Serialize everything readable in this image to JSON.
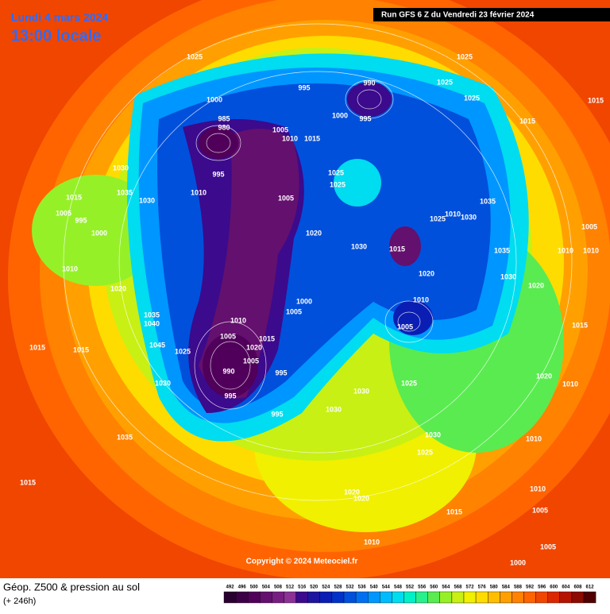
{
  "header": {
    "date": "Lundi 4 mars 2024",
    "time": "13:00 locale",
    "run": "Run GFS 6 Z du Vendredi 23 février 2024"
  },
  "footer": {
    "title": "Géop. Z500 & pression au sol",
    "lead": "(+ 246h)",
    "copyright": "Copyright © 2024 Meteociel.fr"
  },
  "scale": {
    "values": [
      492,
      496,
      500,
      504,
      508,
      512,
      516,
      520,
      524,
      528,
      532,
      536,
      540,
      544,
      548,
      552,
      556,
      560,
      564,
      568,
      572,
      576,
      580,
      584,
      588,
      592,
      596,
      600,
      604,
      608,
      612
    ],
    "colors": [
      "#2a0030",
      "#3c0046",
      "#50005a",
      "#64106e",
      "#781e82",
      "#8c3296",
      "#3c0a8c",
      "#1e14a0",
      "#0a1eb4",
      "#0032c8",
      "#0050dc",
      "#0070f0",
      "#0096ff",
      "#00bcff",
      "#00dcf0",
      "#00f0c8",
      "#28f08c",
      "#5aeb50",
      "#96f028",
      "#c8f014",
      "#f0f000",
      "#ffdc00",
      "#ffbe00",
      "#ffa000",
      "#ff8200",
      "#ff6400",
      "#f04600",
      "#dc2800",
      "#b41400",
      "#8c0a00",
      "#500000"
    ]
  },
  "pressure_labels": [
    1025,
    1025,
    995,
    990,
    1000,
    985,
    980,
    1005,
    1010,
    1015,
    1000,
    995,
    1025,
    1025,
    1015,
    1015,
    1030,
    995,
    1025,
    1025,
    1015,
    1035,
    1030,
    1010,
    1005,
    1035,
    1005,
    995,
    1000,
    1020,
    1030,
    1015,
    1025,
    1010,
    1030,
    1005,
    1035,
    1010,
    1010,
    1020,
    1030,
    1020,
    1010,
    1020,
    1000,
    1005,
    1010,
    1005,
    1035,
    1040,
    1010,
    1005,
    1015,
    1020,
    1045,
    1025,
    1005,
    990,
    995,
    1015,
    1015,
    1030,
    995,
    1025,
    1030,
    1030,
    995,
    1030,
    1035,
    1025,
    1010,
    1015,
    1010,
    1020,
    1020,
    1015,
    1005,
    1010,
    1005,
    1000,
    1015,
    1020,
    1010
  ]
}
